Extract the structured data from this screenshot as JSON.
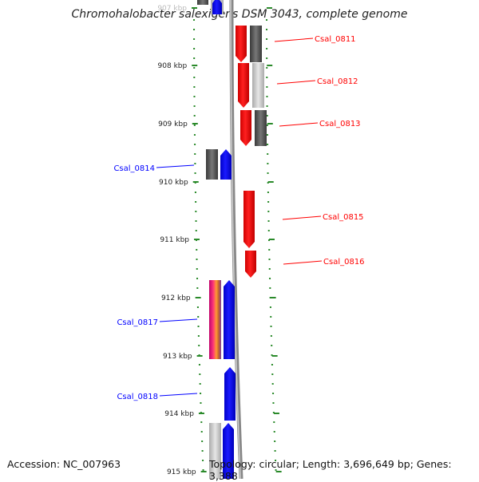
{
  "title": "Chromohalobacter salexigens DSM 3043, complete genome",
  "accession": "Accession: NC_007963",
  "summary": "Topology: circular; Length: 3,696,649 bp; Genes: 3,388",
  "scale_labels": [
    "907 kbp",
    "908 kbp",
    "909 kbp",
    "910 kbp",
    "911 kbp",
    "912 kbp",
    "913 kbp",
    "914 kbp",
    "915 kbp"
  ],
  "colors": {
    "forward": "#ff0000",
    "reverse": "#0000ff",
    "backbone": "#888888",
    "tick": "#2a8a2a",
    "similarity_dark": "#555555",
    "similarity_light": "#cccccc"
  },
  "genes": [
    {
      "name": "Csal_0811",
      "strand": "forward"
    },
    {
      "name": "Csal_0812",
      "strand": "forward"
    },
    {
      "name": "Csal_0813",
      "strand": "forward"
    },
    {
      "name": "Csal_0814",
      "strand": "reverse"
    },
    {
      "name": "Csal_0815",
      "strand": "forward"
    },
    {
      "name": "Csal_0816",
      "strand": "forward"
    },
    {
      "name": "Csal_0817",
      "strand": "reverse"
    },
    {
      "name": "Csal_0818",
      "strand": "reverse"
    }
  ]
}
